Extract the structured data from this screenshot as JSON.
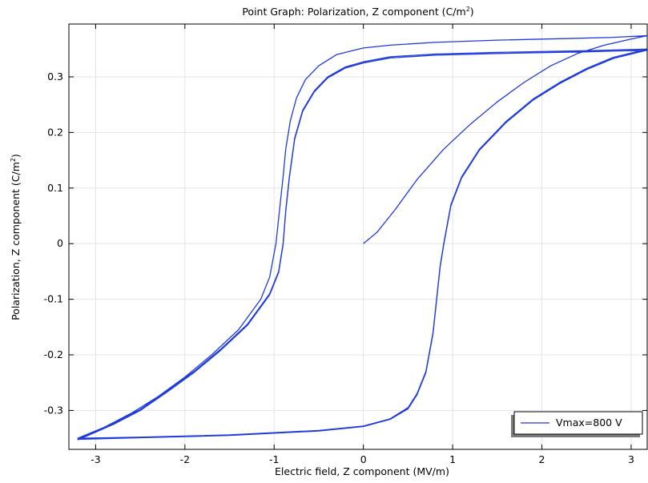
{
  "chart_data": {
    "type": "line",
    "title": "Point Graph: Polarization, Z component (C/m²)",
    "title_parts": {
      "main": "Point Graph: Polarization, Z component (C/m",
      "sup": "2",
      "end": ")"
    },
    "xlabel": "Electric field, Z component (MV/m)",
    "ylabel": "Polarization, Z component (C/m²)",
    "ylabel_parts": {
      "main": "Polarization, Z component (C/m",
      "sup": "2",
      "end": ")"
    },
    "xlim": [
      -3.3,
      3.18
    ],
    "ylim": [
      -0.37,
      0.395
    ],
    "x_ticks": [
      -3,
      -2,
      -1,
      0,
      1,
      2,
      3
    ],
    "x_tick_labels": [
      "-3",
      "-2",
      "-1",
      "0",
      "1",
      "2",
      "3"
    ],
    "y_ticks": [
      -0.3,
      -0.2,
      -0.1,
      0,
      0.1,
      0.2,
      0.3
    ],
    "y_tick_labels": [
      "-0.3",
      "-0.2",
      "-0.1",
      "0",
      "0.1",
      "0.2",
      "0.3"
    ],
    "grid": true,
    "legend_position": "bottom-right",
    "colors": {
      "series": "#1f3bdc",
      "grid": "#e3e3e3",
      "axis": "#000000",
      "legend_shadow": "#7a7a7a"
    },
    "series": [
      {
        "name": "Vmax=800 V",
        "points": [
          [
            0,
            0
          ],
          [
            0.15,
            0.02
          ],
          [
            0.35,
            0.06
          ],
          [
            0.6,
            0.115
          ],
          [
            0.9,
            0.17
          ],
          [
            1.2,
            0.215
          ],
          [
            1.5,
            0.255
          ],
          [
            1.8,
            0.29
          ],
          [
            2.1,
            0.32
          ],
          [
            2.4,
            0.342
          ],
          [
            2.7,
            0.357
          ],
          [
            3.0,
            0.368
          ],
          [
            3.18,
            0.374
          ],
          [
            2.8,
            0.371
          ],
          [
            2.3,
            0.369
          ],
          [
            1.5,
            0.366
          ],
          [
            0.8,
            0.362
          ],
          [
            0.3,
            0.357
          ],
          [
            0,
            0.352
          ],
          [
            -0.3,
            0.34
          ],
          [
            -0.5,
            0.32
          ],
          [
            -0.65,
            0.295
          ],
          [
            -0.75,
            0.262
          ],
          [
            -0.82,
            0.22
          ],
          [
            -0.87,
            0.17
          ],
          [
            -0.9,
            0.12
          ],
          [
            -0.94,
            0.06
          ],
          [
            -0.98,
            0.0
          ],
          [
            -1.05,
            -0.06
          ],
          [
            -1.15,
            -0.1
          ],
          [
            -1.4,
            -0.155
          ],
          [
            -1.7,
            -0.2
          ],
          [
            -2.0,
            -0.24
          ],
          [
            -2.3,
            -0.275
          ],
          [
            -2.6,
            -0.305
          ],
          [
            -2.9,
            -0.33
          ],
          [
            -3.2,
            -0.35
          ],
          [
            -2.5,
            -0.348
          ],
          [
            -1.5,
            -0.344
          ],
          [
            -0.5,
            -0.336
          ],
          [
            0,
            -0.328
          ],
          [
            0.3,
            -0.315
          ],
          [
            0.5,
            -0.295
          ],
          [
            0.6,
            -0.27
          ],
          [
            0.7,
            -0.23
          ],
          [
            0.78,
            -0.16
          ],
          [
            0.82,
            -0.1
          ],
          [
            0.86,
            -0.04
          ],
          [
            0.9,
            0.0
          ],
          [
            0.98,
            0.07
          ],
          [
            1.1,
            0.12
          ],
          [
            1.3,
            0.17
          ],
          [
            1.6,
            0.22
          ],
          [
            1.9,
            0.26
          ],
          [
            2.2,
            0.29
          ],
          [
            2.5,
            0.315
          ],
          [
            2.8,
            0.335
          ],
          [
            3.18,
            0.35
          ],
          [
            2.5,
            0.347
          ],
          [
            1.5,
            0.344
          ],
          [
            0.8,
            0.341
          ],
          [
            0.3,
            0.336
          ],
          [
            0,
            0.327
          ],
          [
            -0.2,
            0.318
          ],
          [
            -0.4,
            0.3
          ],
          [
            -0.55,
            0.275
          ],
          [
            -0.68,
            0.24
          ],
          [
            -0.77,
            0.19
          ],
          [
            -0.83,
            0.12
          ],
          [
            -0.87,
            0.06
          ],
          [
            -0.9,
            0.0
          ],
          [
            -0.95,
            -0.05
          ],
          [
            -1.05,
            -0.09
          ],
          [
            -1.3,
            -0.145
          ],
          [
            -1.6,
            -0.19
          ],
          [
            -1.9,
            -0.23
          ],
          [
            -2.2,
            -0.265
          ],
          [
            -2.5,
            -0.298
          ],
          [
            -2.8,
            -0.323
          ],
          [
            -3.2,
            -0.352
          ],
          [
            -2.5,
            -0.349
          ],
          [
            -1.5,
            -0.345
          ],
          [
            -0.5,
            -0.337
          ],
          [
            0,
            -0.329
          ],
          [
            0.3,
            -0.316
          ],
          [
            0.5,
            -0.297
          ],
          [
            0.6,
            -0.272
          ],
          [
            0.7,
            -0.232
          ],
          [
            0.78,
            -0.162
          ],
          [
            0.82,
            -0.102
          ],
          [
            0.86,
            -0.042
          ],
          [
            0.9,
            -0.002
          ],
          [
            0.98,
            0.068
          ],
          [
            1.1,
            0.118
          ],
          [
            1.3,
            0.168
          ],
          [
            1.6,
            0.218
          ],
          [
            1.9,
            0.258
          ],
          [
            2.2,
            0.288
          ],
          [
            2.5,
            0.313
          ],
          [
            2.8,
            0.333
          ],
          [
            3.18,
            0.348
          ],
          [
            2.5,
            0.345
          ],
          [
            1.5,
            0.342
          ],
          [
            0.8,
            0.339
          ],
          [
            0.3,
            0.334
          ],
          [
            0,
            0.325
          ],
          [
            -0.2,
            0.316
          ],
          [
            -0.4,
            0.298
          ],
          [
            -0.55,
            0.273
          ],
          [
            -0.68,
            0.238
          ],
          [
            -0.77,
            0.188
          ],
          [
            -0.83,
            0.118
          ],
          [
            -0.87,
            0.058
          ],
          [
            -0.9,
            -0.002
          ],
          [
            -0.95,
            -0.052
          ],
          [
            -1.05,
            -0.092
          ],
          [
            -1.3,
            -0.147
          ],
          [
            -1.6,
            -0.192
          ],
          [
            -1.9,
            -0.232
          ],
          [
            -2.2,
            -0.267
          ],
          [
            -2.5,
            -0.3
          ],
          [
            -2.8,
            -0.325
          ],
          [
            -3.2,
            -0.353
          ]
        ]
      }
    ]
  }
}
